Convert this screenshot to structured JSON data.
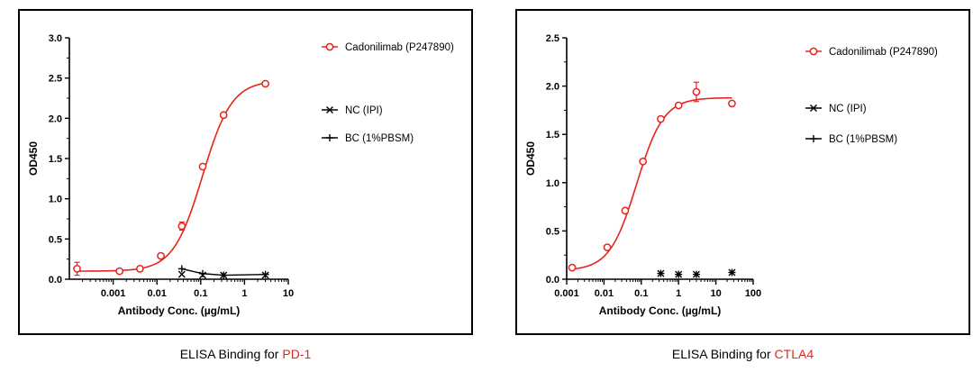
{
  "colors": {
    "cadonilimab": "#e8231b",
    "controls": "#000000",
    "caption_highlight": "#e8231b"
  },
  "captions": [
    {
      "prefix": "ELISA Binding for ",
      "target": "PD-1"
    },
    {
      "prefix": "ELISA Binding for ",
      "target": "CTLA4"
    }
  ],
  "chart_data": [
    {
      "type": "scatter",
      "title": "",
      "xlabel": "Antibody Conc. (µg/mL)",
      "ylabel": "OD450",
      "xscale": "log",
      "xlim": [
        0.0001,
        10
      ],
      "ylim": [
        0,
        3.0
      ],
      "x_ticks": [
        0.001,
        0.01,
        0.1,
        1,
        10
      ],
      "x_tick_labels": [
        "0.001",
        "0.01",
        "0.1",
        "1",
        "10"
      ],
      "y_ticks": [
        0,
        0.5,
        1.0,
        1.5,
        2.0,
        2.5,
        3.0
      ],
      "y_tick_labels": [
        "0.0",
        "0.5",
        "1.0",
        "1.5",
        "2.0",
        "2.5",
        "3.0"
      ],
      "grid": false,
      "legend_position": "right",
      "series": [
        {
          "name": "Cadonilimab (P247890)",
          "marker": "circle",
          "color": "#e8231b",
          "points": [
            {
              "x": 0.00015,
              "y": 0.13,
              "err": 0.08
            },
            {
              "x": 0.0014,
              "y": 0.1,
              "err": 0.02
            },
            {
              "x": 0.0041,
              "y": 0.13,
              "err": 0.02
            },
            {
              "x": 0.0123,
              "y": 0.29,
              "err": 0.02
            },
            {
              "x": 0.037,
              "y": 0.66,
              "err": 0.05
            },
            {
              "x": 0.111,
              "y": 1.4,
              "err": 0.03
            },
            {
              "x": 0.333,
              "y": 2.04,
              "err": 0.02
            },
            {
              "x": 3.0,
              "y": 2.43,
              "err": 0.02
            }
          ],
          "fit": {
            "bottom": 0.1,
            "top": 2.47,
            "ec50": 0.11,
            "hill": 1.3
          }
        },
        {
          "name": "NC (IPI)",
          "marker": "x",
          "color": "#000000",
          "points": [
            {
              "x": 0.037,
              "y": 0.06
            },
            {
              "x": 0.111,
              "y": 0.05
            },
            {
              "x": 0.333,
              "y": 0.05
            },
            {
              "x": 3.0,
              "y": 0.05
            }
          ]
        },
        {
          "name": "BC (1%PBSM)",
          "marker": "plus",
          "color": "#000000",
          "points": [
            {
              "x": 0.037,
              "y": 0.13
            },
            {
              "x": 0.111,
              "y": 0.07
            },
            {
              "x": 0.333,
              "y": 0.05
            },
            {
              "x": 3.0,
              "y": 0.06
            }
          ]
        }
      ]
    },
    {
      "type": "scatter",
      "title": "",
      "xlabel": "Antibody Conc. (µg/mL)",
      "ylabel": "OD450",
      "xscale": "log",
      "xlim": [
        0.001,
        100
      ],
      "ylim": [
        0,
        2.5
      ],
      "x_ticks": [
        0.001,
        0.01,
        0.1,
        1,
        10,
        100
      ],
      "x_tick_labels": [
        "0.001",
        "0.01",
        "0.1",
        "1",
        "10",
        "100"
      ],
      "y_ticks": [
        0,
        0.5,
        1.0,
        1.5,
        2.0,
        2.5
      ],
      "y_tick_labels": [
        "0.0",
        "0.5",
        "1.0",
        "1.5",
        "2.0",
        "2.5"
      ],
      "grid": false,
      "legend_position": "right",
      "series": [
        {
          "name": "Cadonilimab (P247890)",
          "marker": "circle",
          "color": "#e8231b",
          "points": [
            {
              "x": 0.0014,
              "y": 0.12,
              "err": 0.01
            },
            {
              "x": 0.0123,
              "y": 0.33,
              "err": 0.02
            },
            {
              "x": 0.037,
              "y": 0.71,
              "err": 0.02
            },
            {
              "x": 0.111,
              "y": 1.22,
              "err": 0.02
            },
            {
              "x": 0.333,
              "y": 1.66,
              "err": 0.02
            },
            {
              "x": 1.0,
              "y": 1.8,
              "err": 0.02
            },
            {
              "x": 3.0,
              "y": 1.94,
              "err": 0.1
            },
            {
              "x": 27,
              "y": 1.82,
              "err": 0.02
            }
          ],
          "fit": {
            "bottom": 0.09,
            "top": 1.88,
            "ec50": 0.075,
            "hill": 1.2
          }
        },
        {
          "name": "NC (IPI)",
          "marker": "x",
          "color": "#000000",
          "points": [
            {
              "x": 0.333,
              "y": 0.06
            },
            {
              "x": 1.0,
              "y": 0.05
            },
            {
              "x": 3.0,
              "y": 0.05
            },
            {
              "x": 27,
              "y": 0.07
            }
          ]
        },
        {
          "name": "BC (1%PBSM)",
          "marker": "plus",
          "color": "#000000",
          "points": [
            {
              "x": 0.333,
              "y": 0.06
            },
            {
              "x": 1.0,
              "y": 0.05
            },
            {
              "x": 3.0,
              "y": 0.05
            },
            {
              "x": 27,
              "y": 0.07
            }
          ]
        }
      ]
    }
  ]
}
